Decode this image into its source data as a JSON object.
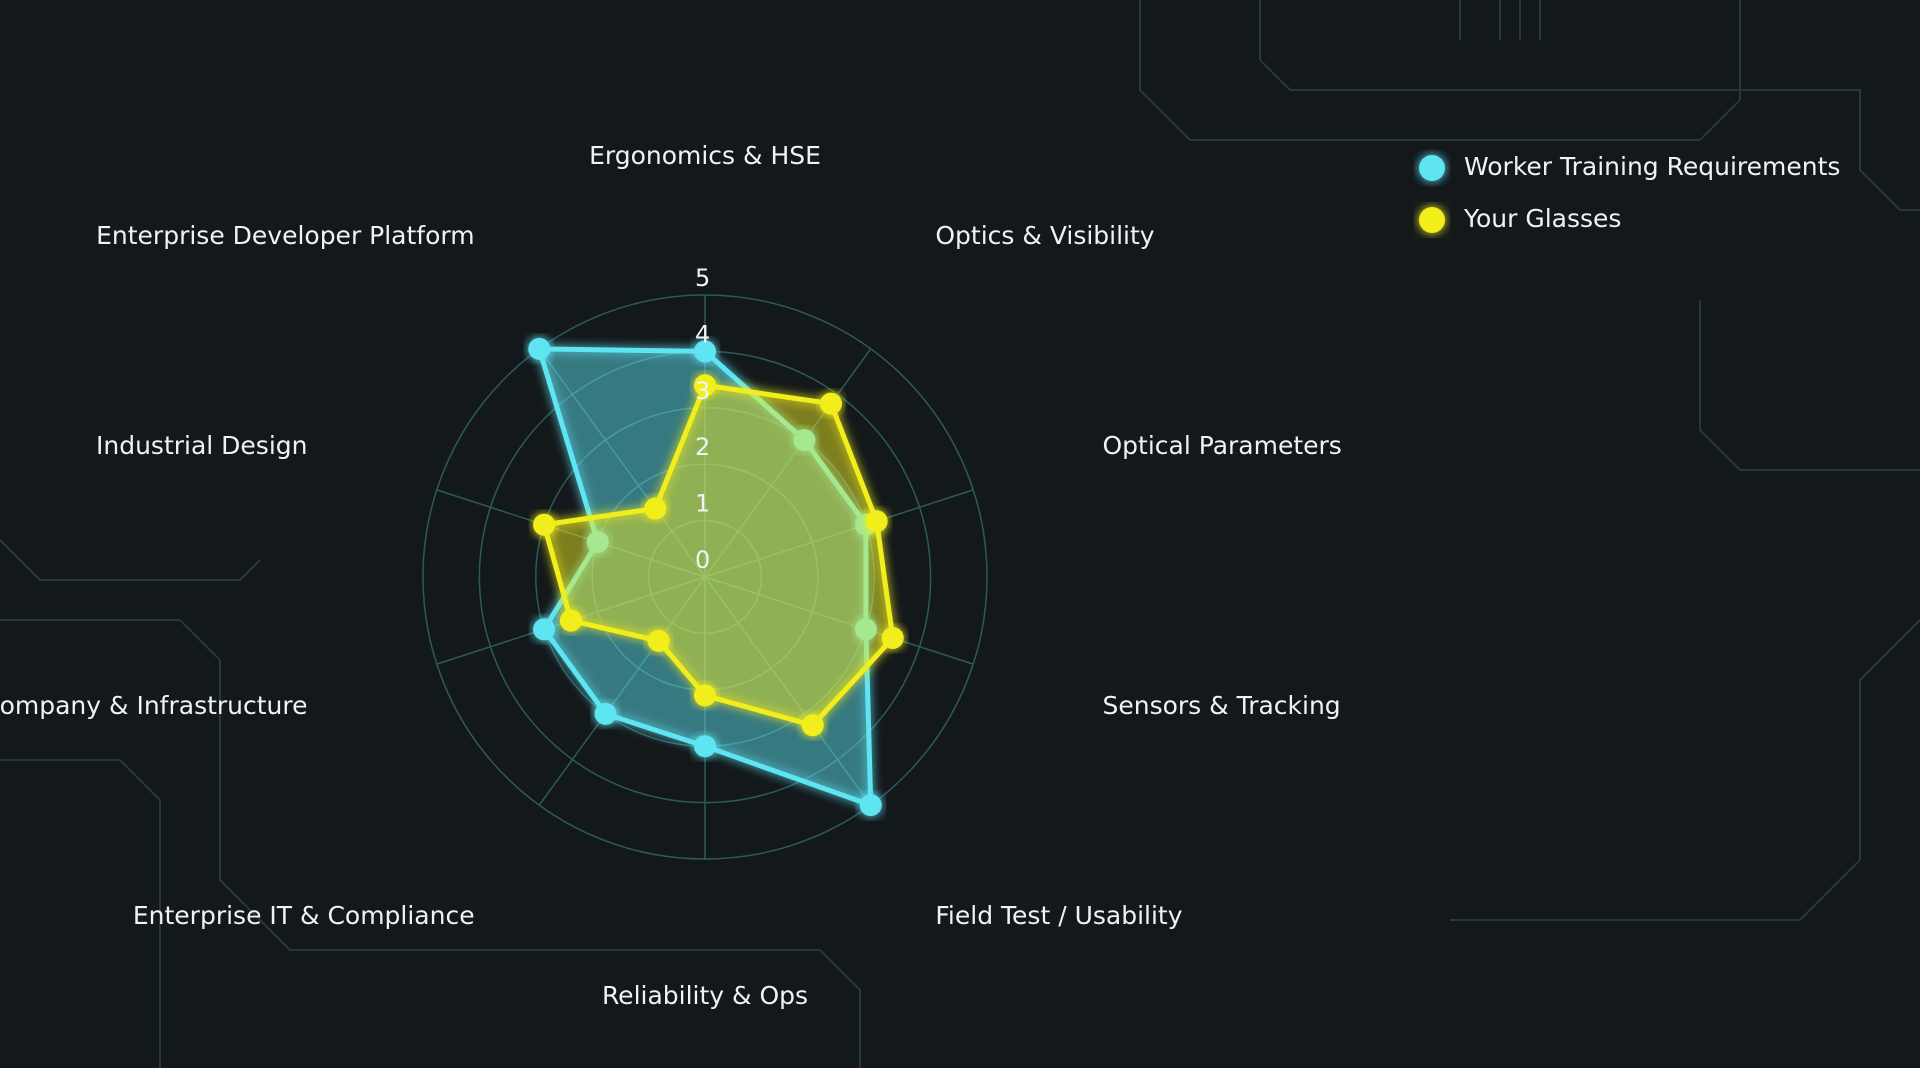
{
  "chart_data": {
    "type": "radar",
    "categories": [
      "Ergonomics & HSE",
      "Optics & Visibility",
      "Optical Parameters",
      "Sensors & Tracking",
      "Field Test / Usability",
      "Reliability & Ops",
      "Enterprise IT & Compliance",
      "Company & Infrastructure",
      "Industrial Design",
      "Enterprise Developer Platform"
    ],
    "series": [
      {
        "name": "Worker Training Requirements",
        "color": "#5ee4f2",
        "values": [
          4,
          3,
          3,
          3,
          5,
          3,
          3,
          3,
          2,
          5
        ]
      },
      {
        "name": "Your Glasses",
        "color": "#f2ee1c",
        "values": [
          3.4,
          3.8,
          3.2,
          3.5,
          3.25,
          2.1,
          1.4,
          2.5,
          3,
          1.5
        ]
      }
    ],
    "ylim": [
      0,
      5
    ],
    "yticks": [
      0,
      1,
      2,
      3,
      4,
      5
    ],
    "grid": true,
    "legend": "top-right"
  }
}
